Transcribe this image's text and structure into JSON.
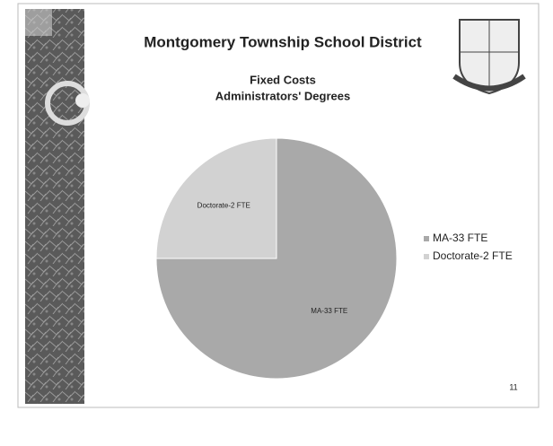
{
  "chart_data": {
    "type": "pie",
    "title": "Montgomery Township School District",
    "subtitle": [
      "Fixed Costs",
      "Administrators' Degrees"
    ],
    "categories": [
      "MA-33 FTE",
      "Doctorate-2 FTE"
    ],
    "values": [
      75,
      25
    ],
    "colors": [
      "#a9a9a9",
      "#d2d2d2"
    ],
    "legend": "right"
  },
  "slide": {
    "page_number": "11"
  }
}
